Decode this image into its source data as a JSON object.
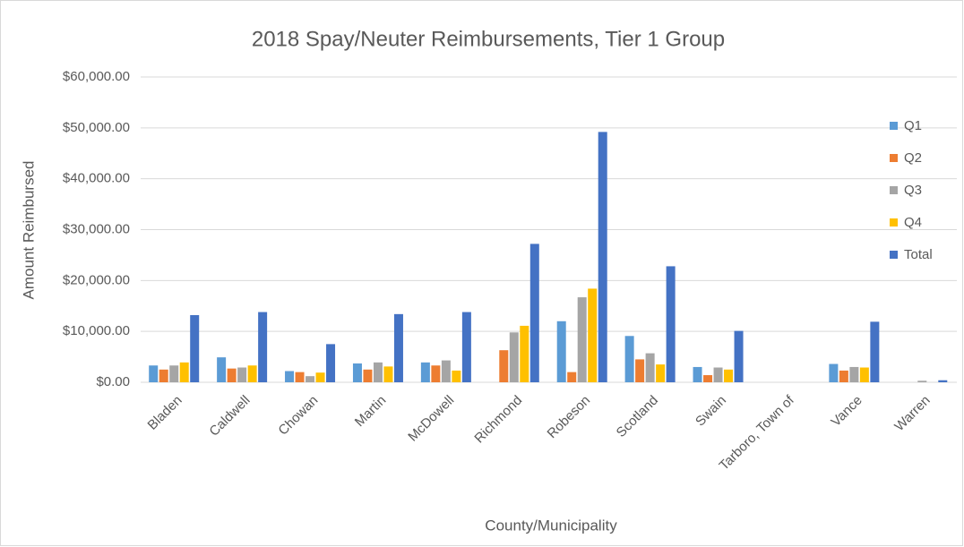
{
  "chart_data": {
    "type": "bar",
    "title": "2018 Spay/Neuter Reimbursements, Tier 1 Group",
    "x_label": "County/Municipality",
    "y_label": "Amount Reimbursed",
    "categories": [
      "Bladen",
      "Caldwell",
      "Chowan",
      "Martin",
      "McDowell",
      "Richmond",
      "Robeson",
      "Scotland",
      "Swain",
      "Tarboro, Town of",
      "Vance",
      "Warren"
    ],
    "series": [
      {
        "name": "Q1",
        "color": "#5b9bd5",
        "values": [
          3300,
          4900,
          2200,
          3700,
          3900,
          0,
          12000,
          9100,
          3000,
          0,
          3600,
          0
        ]
      },
      {
        "name": "Q2",
        "color": "#ed7d31",
        "values": [
          2500,
          2700,
          2000,
          2500,
          3300,
          6300,
          2000,
          4500,
          1400,
          0,
          2300,
          0
        ]
      },
      {
        "name": "Q3",
        "color": "#a5a5a5",
        "values": [
          3300,
          2900,
          1200,
          3900,
          4300,
          9800,
          16700,
          5700,
          2900,
          0,
          3000,
          300
        ]
      },
      {
        "name": "Q4",
        "color": "#ffc000",
        "values": [
          3900,
          3300,
          1900,
          3100,
          2300,
          11100,
          18400,
          3500,
          2500,
          0,
          2900,
          0
        ]
      },
      {
        "name": "Total",
        "color": "#4472c4",
        "values": [
          13200,
          13800,
          7500,
          13400,
          13800,
          27200,
          49200,
          22800,
          10100,
          0,
          11900,
          400
        ]
      }
    ],
    "ylim": [
      0,
      60000
    ],
    "yticks": [
      {
        "value": 0,
        "label": "$0.00"
      },
      {
        "value": 10000,
        "label": "$10,000.00"
      },
      {
        "value": 20000,
        "label": "$20,000.00"
      },
      {
        "value": 30000,
        "label": "$30,000.00"
      },
      {
        "value": 40000,
        "label": "$40,000.00"
      },
      {
        "value": 50000,
        "label": "$50,000.00"
      },
      {
        "value": 60000,
        "label": "$60,000.00"
      }
    ],
    "grid": true,
    "legend": "right"
  }
}
